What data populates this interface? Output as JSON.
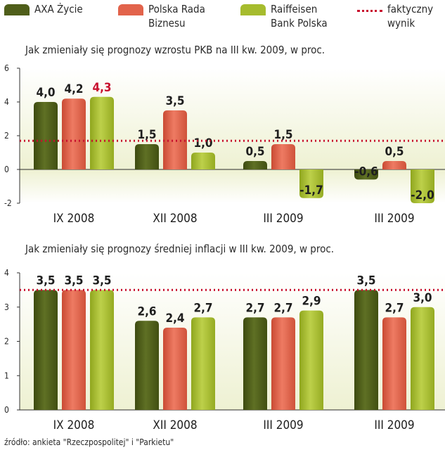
{
  "legend": {
    "items": [
      {
        "label": "AXA Życie",
        "color": "#4f5e1a"
      },
      {
        "label": "Polska Rada\nBiznesu",
        "color": "#e2634b"
      },
      {
        "label": "Raiffeisen\nBank Polska",
        "color": "#a6bc2e"
      }
    ],
    "actual": {
      "label": "faktyczny\nwynik",
      "color": "#c8102e"
    }
  },
  "chart_data": [
    {
      "type": "bar",
      "title": "Jak zmieniały się prognozy wzrostu PKB na III kw. 2009, w proc.",
      "categories": [
        "IX 2008",
        "XII 2008",
        "III 2009",
        "III 2009"
      ],
      "series": [
        {
          "name": "AXA Życie",
          "values": [
            4.0,
            1.5,
            0.5,
            -0.6
          ],
          "labels": [
            "4,0",
            "1,5",
            "0,5",
            "-0,6"
          ]
        },
        {
          "name": "Polska Rada Biznesu",
          "values": [
            4.2,
            3.5,
            1.5,
            0.5
          ],
          "labels": [
            "4,2",
            "3,5",
            "1,5",
            "0,5"
          ]
        },
        {
          "name": "Raiffeisen Bank Polska",
          "values": [
            4.3,
            1.0,
            -1.7,
            -2.0
          ],
          "labels": [
            "4,3",
            "1,0",
            "-1,7",
            "-2,0"
          ]
        }
      ],
      "highlight_label": {
        "series": 2,
        "category": 0,
        "color": "#c8102e"
      },
      "actual_value": 1.7,
      "ylim": [
        -2,
        6
      ],
      "yticks": [
        -2,
        0,
        2,
        4,
        6
      ]
    },
    {
      "type": "bar",
      "title": "Jak zmieniały się prognozy średniej inflacji w III kw. 2009, w proc.",
      "categories": [
        "IX 2008",
        "XII 2008",
        "III 2009",
        "III 2009"
      ],
      "series": [
        {
          "name": "AXA Życie",
          "values": [
            3.5,
            2.6,
            2.7,
            3.5
          ],
          "labels": [
            "3,5",
            "2,6",
            "2,7",
            "3,5"
          ]
        },
        {
          "name": "Polska Rada Biznesu",
          "values": [
            3.5,
            2.4,
            2.7,
            2.7
          ],
          "labels": [
            "3,5",
            "2,4",
            "2,7",
            "2,7"
          ]
        },
        {
          "name": "Raiffeisen Bank Polska",
          "values": [
            3.5,
            2.7,
            2.9,
            3.0
          ],
          "labels": [
            "3,5",
            "2,7",
            "2,9",
            "3,0"
          ]
        }
      ],
      "actual_value": 3.5,
      "ylim": [
        0,
        4
      ],
      "yticks": [
        0,
        1,
        2,
        3,
        4
      ]
    }
  ],
  "source": "źródło: ankieta \"Rzeczpospolitej\" i \"Parkietu\""
}
